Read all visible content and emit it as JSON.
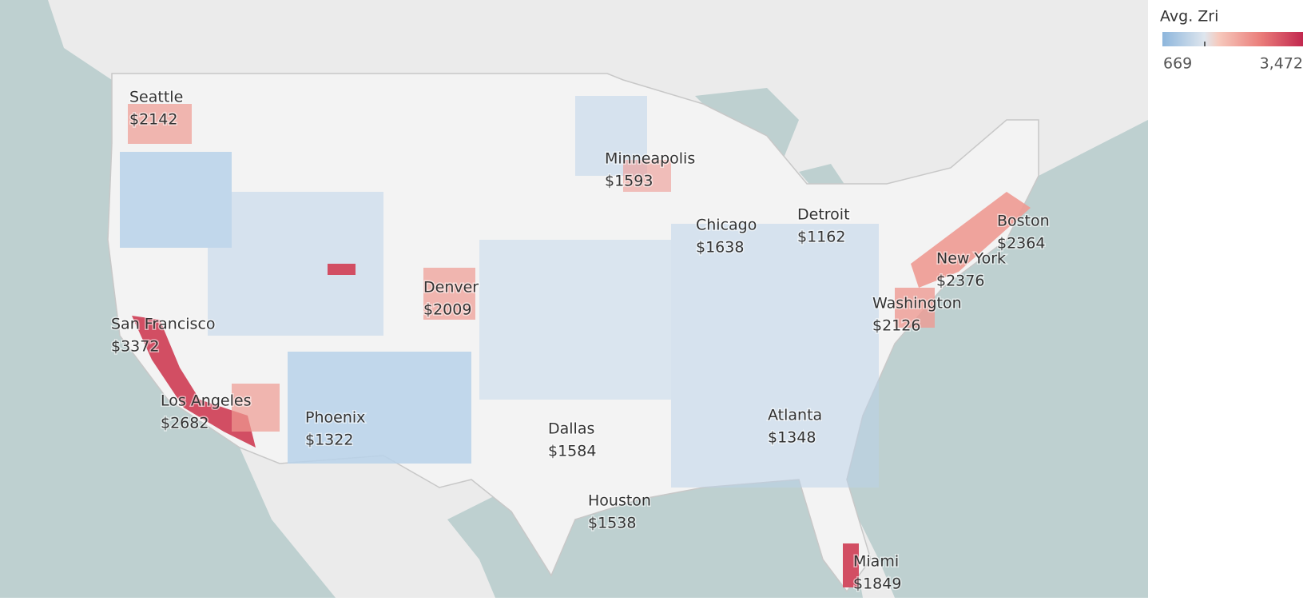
{
  "legend": {
    "title": "Avg. Zri",
    "min": 669,
    "max": "3,472"
  },
  "cities": [
    {
      "name": "Seattle",
      "value": "$2142"
    },
    {
      "name": "San Francisco",
      "value": "$3372"
    },
    {
      "name": "Los Angeles",
      "value": "$2682"
    },
    {
      "name": "Phoenix",
      "value": "$1322"
    },
    {
      "name": "Denver",
      "value": "$2009"
    },
    {
      "name": "Minneapolis",
      "value": "$1593"
    },
    {
      "name": "Chicago",
      "value": "$1638"
    },
    {
      "name": "Detroit",
      "value": "$1162"
    },
    {
      "name": "Boston",
      "value": "$2364"
    },
    {
      "name": "New York",
      "value": "$2376"
    },
    {
      "name": "Washington",
      "value": "$2126"
    },
    {
      "name": "Atlanta",
      "value": "$1348"
    },
    {
      "name": "Dallas",
      "value": "$1584"
    },
    {
      "name": "Houston",
      "value": "$1538"
    },
    {
      "name": "Miami",
      "value": "$1849"
    }
  ]
}
